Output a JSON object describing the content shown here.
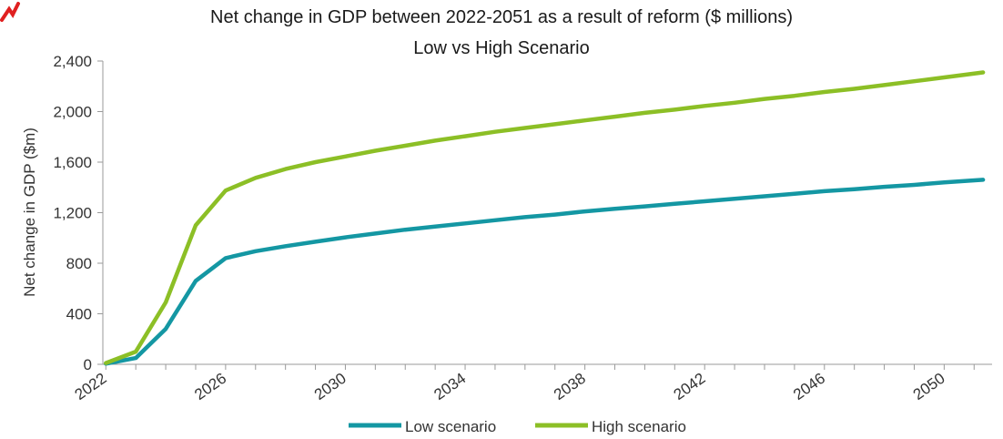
{
  "chart_data": {
    "type": "line",
    "title": "Net change in GDP between 2022-2051 as a result of reform ($ millions)",
    "subtitle": "Low vs High Scenario",
    "ylabel": "Net change in GDP ($m)",
    "xlabel": "",
    "ylim": [
      0,
      2400
    ],
    "yticks": [
      "0",
      "400",
      "800",
      "1,200",
      "1,600",
      "2,000",
      "2,400"
    ],
    "yticks_values": [
      0,
      400,
      800,
      1200,
      1600,
      2000,
      2400
    ],
    "xticks": [
      "2022",
      "2026",
      "2030",
      "2034",
      "2038",
      "2042",
      "2046",
      "2050"
    ],
    "xticks_values": [
      2022,
      2026,
      2030,
      2034,
      2038,
      2042,
      2046,
      2050
    ],
    "x": [
      2022,
      2023,
      2024,
      2025,
      2026,
      2027,
      2028,
      2029,
      2030,
      2031,
      2032,
      2033,
      2034,
      2035,
      2036,
      2037,
      2038,
      2039,
      2040,
      2041,
      2042,
      2043,
      2044,
      2045,
      2046,
      2047,
      2048,
      2049,
      2050,
      2051
    ],
    "series": [
      {
        "name": "Low scenario",
        "color": "#1497a3",
        "values": [
          5,
          50,
          280,
          660,
          840,
          895,
          935,
          970,
          1005,
          1035,
          1065,
          1090,
          1115,
          1140,
          1165,
          1185,
          1210,
          1230,
          1250,
          1270,
          1290,
          1310,
          1330,
          1350,
          1370,
          1385,
          1405,
          1420,
          1440,
          1460
        ]
      },
      {
        "name": "High scenario",
        "color": "#8cbf26",
        "values": [
          10,
          100,
          490,
          1100,
          1375,
          1475,
          1545,
          1600,
          1645,
          1690,
          1730,
          1770,
          1805,
          1840,
          1870,
          1900,
          1930,
          1960,
          1990,
          2015,
          2045,
          2070,
          2100,
          2125,
          2155,
          2180,
          2210,
          2240,
          2270,
          2310
        ]
      }
    ],
    "grid": false,
    "legend": "bottom-center"
  }
}
